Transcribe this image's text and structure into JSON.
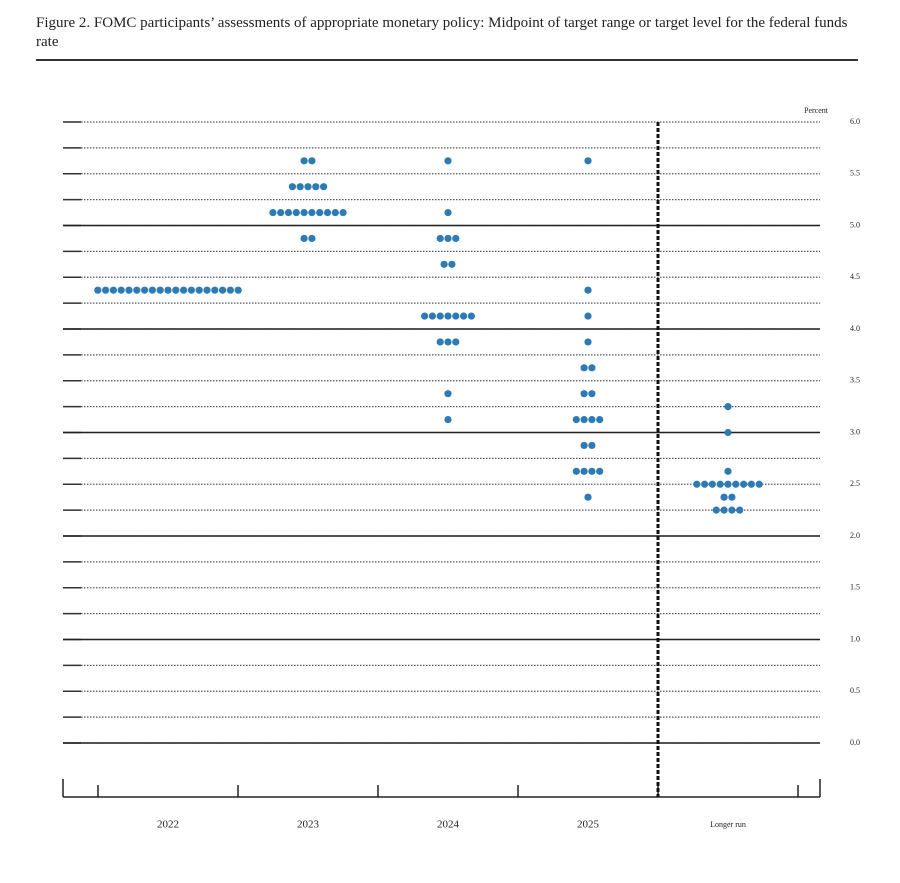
{
  "chart_data": {
    "type": "dotplot",
    "title": "Figure 2.  FOMC participants’ assessments of appropriate monetary policy: Midpoint of target range or target level for the federal funds rate",
    "y_label": "Percent",
    "categories": [
      "2022",
      "2023",
      "2024",
      "2025",
      "Longer run"
    ],
    "color": "#2e7bb4",
    "dots": [
      [
        {
          "y": 4.375,
          "n": 19
        }
      ],
      [
        {
          "y": 5.625,
          "n": 2
        },
        {
          "y": 5.375,
          "n": 5
        },
        {
          "y": 5.125,
          "n": 10
        },
        {
          "y": 4.875,
          "n": 2
        }
      ],
      [
        {
          "y": 5.625,
          "n": 1
        },
        {
          "y": 5.125,
          "n": 1
        },
        {
          "y": 4.875,
          "n": 3
        },
        {
          "y": 4.625,
          "n": 2
        },
        {
          "y": 4.125,
          "n": 7
        },
        {
          "y": 3.875,
          "n": 3
        },
        {
          "y": 3.375,
          "n": 1
        },
        {
          "y": 3.125,
          "n": 1
        }
      ],
      [
        {
          "y": 5.625,
          "n": 1
        },
        {
          "y": 4.375,
          "n": 1
        },
        {
          "y": 4.125,
          "n": 1
        },
        {
          "y": 3.875,
          "n": 1
        },
        {
          "y": 3.625,
          "n": 2
        },
        {
          "y": 3.375,
          "n": 2
        },
        {
          "y": 3.125,
          "n": 4
        },
        {
          "y": 2.875,
          "n": 2
        },
        {
          "y": 2.625,
          "n": 4
        },
        {
          "y": 2.375,
          "n": 1
        }
      ],
      [
        {
          "y": 3.25,
          "n": 1
        },
        {
          "y": 3.0,
          "n": 1
        },
        {
          "y": 2.625,
          "n": 1
        },
        {
          "y": 2.5,
          "n": 9
        },
        {
          "y": 2.375,
          "n": 2
        },
        {
          "y": 2.25,
          "n": 4
        }
      ]
    ],
    "ylim": [
      0,
      6
    ],
    "yticks": [
      {
        "value": 0,
        "label": "0.0"
      },
      0.5,
      {
        "value": 1,
        "label": "1.0"
      },
      1.5,
      {
        "value": 2,
        "label": "2.0"
      },
      2.5,
      {
        "value": 3,
        "label": "3.0"
      },
      3.5,
      {
        "value": 4,
        "label": "4.0"
      },
      4.5,
      {
        "value": 5,
        "label": "5.0"
      },
      5.5,
      {
        "value": 6,
        "label": "6.0"
      }
    ],
    "minor_grid_step": 0.25,
    "grid": true
  }
}
